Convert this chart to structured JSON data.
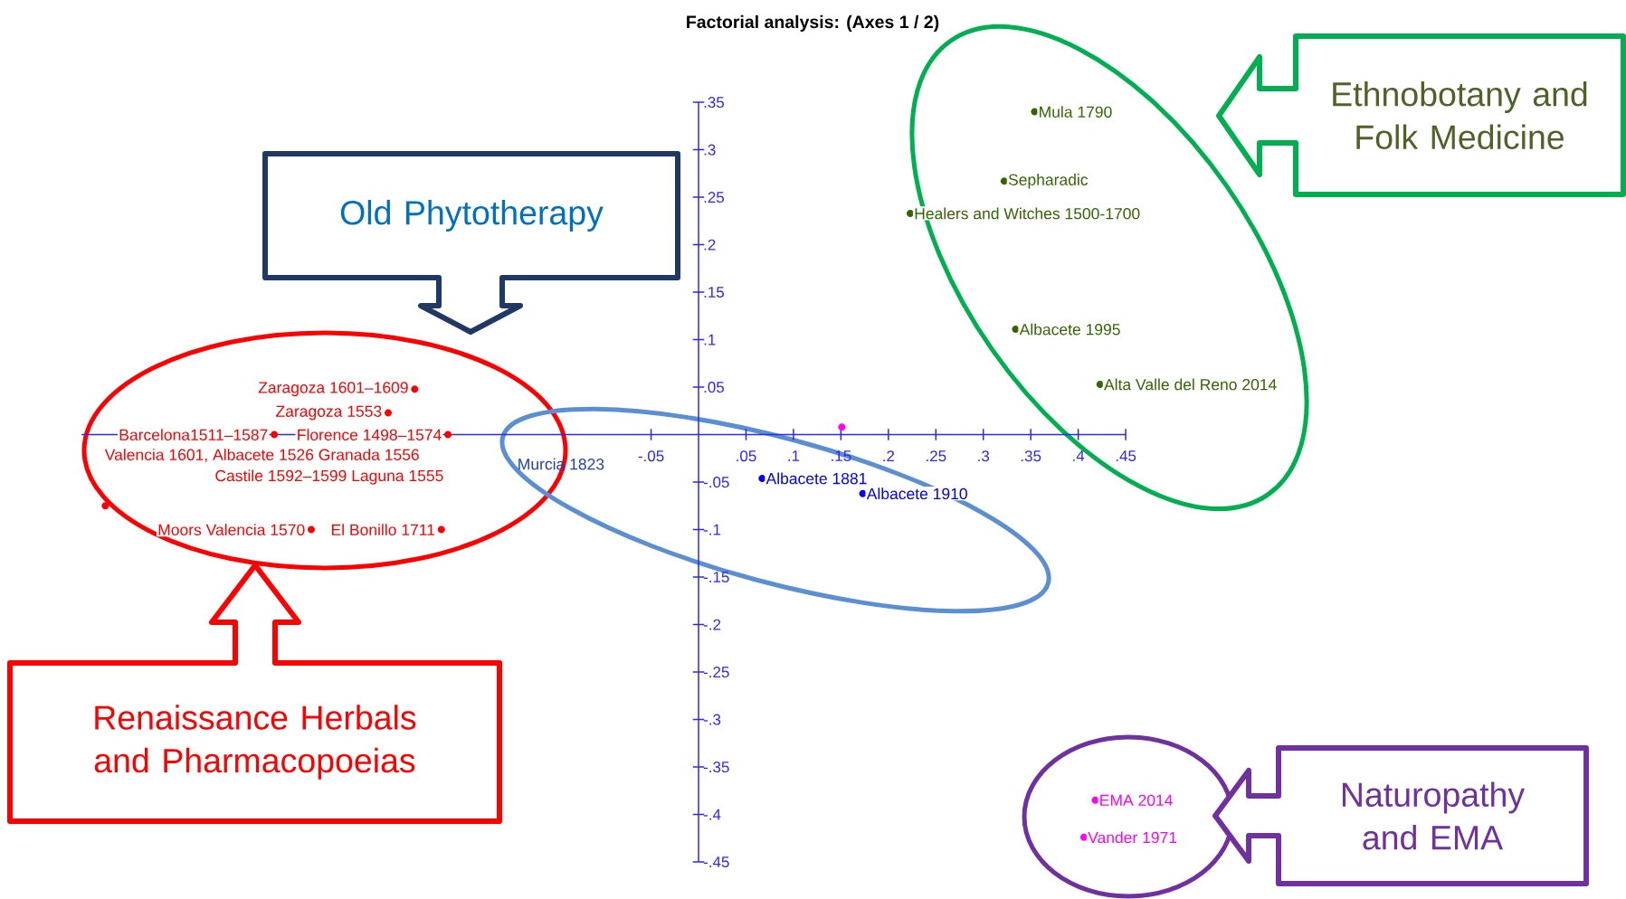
{
  "chart_data": {
    "type": "scatter",
    "title": "Factorial analysis: (Axes 1 / 2)",
    "marker": "circle",
    "xlim": [
      -0.65,
      0.45
    ],
    "ylim": [
      -0.45,
      0.35
    ],
    "xticks": [
      {
        "value": -0.05,
        "label": "-.05"
      },
      {
        "value": 0.05,
        "label": ".05"
      },
      {
        "value": 0.1,
        "label": ".1"
      },
      {
        "value": 0.15,
        "label": ".15"
      },
      {
        "value": 0.2,
        "label": ".2"
      },
      {
        "value": 0.25,
        "label": ".25"
      },
      {
        "value": 0.3,
        "label": ".3"
      },
      {
        "value": 0.35,
        "label": ".35"
      },
      {
        "value": 0.4,
        "label": ".4"
      },
      {
        "value": 0.45,
        "label": ".45"
      }
    ],
    "yticks": [
      {
        "value": 0.35,
        "label": ".35"
      },
      {
        "value": 0.3,
        "label": ".3"
      },
      {
        "value": 0.25,
        "label": ".25"
      },
      {
        "value": 0.2,
        "label": ".2"
      },
      {
        "value": 0.15,
        "label": ".15"
      },
      {
        "value": 0.1,
        "label": ".1"
      },
      {
        "value": 0.05,
        "label": ".05"
      },
      {
        "value": -0.05,
        "label": "-.05"
      },
      {
        "value": -0.1,
        "label": "-.1"
      },
      {
        "value": -0.15,
        "label": "-.15"
      },
      {
        "value": -0.2,
        "label": "-.2"
      },
      {
        "value": -0.25,
        "label": "-.25"
      },
      {
        "value": -0.3,
        "label": "-.3"
      },
      {
        "value": -0.35,
        "label": "-.35"
      },
      {
        "value": -0.4,
        "label": "-.4"
      },
      {
        "value": -0.45,
        "label": "-.45"
      }
    ],
    "series": [
      {
        "color": "#336600",
        "x": [
          0.354,
          0.322,
          0.223,
          0.334,
          0.423
        ],
        "values": [
          0.34,
          0.267,
          0.233,
          0.111,
          0.053
        ]
      },
      {
        "color": "#ff00ff",
        "x": [
          0.151,
          0.418,
          0.406
        ],
        "values": [
          0.008,
          -0.385,
          -0.424
        ]
      },
      {
        "color": "#0000ff",
        "x": [
          0.067,
          0.173
        ],
        "values": [
          -0.046,
          -0.062
        ]
      },
      {
        "color": "#ff0000",
        "x": [
          -0.299,
          -0.327,
          -0.447,
          -0.264,
          -0.625,
          -0.408,
          -0.271
        ],
        "values": [
          0.048,
          0.023,
          0.0,
          0.0,
          -0.075,
          -0.1,
          -0.1
        ]
      }
    ],
    "annotations": [
      {
        "text": "Mula 1790",
        "x": 0.354,
        "y": 0.34
      },
      {
        "text": "Sepharadic",
        "x": 0.322,
        "y": 0.267
      },
      {
        "text": "Healers and Witches 1500-1700",
        "x": 0.223,
        "y": 0.233
      },
      {
        "text": "Albacete 1995",
        "x": 0.334,
        "y": 0.111
      },
      {
        "text": "Alta Valle del Reno 2014",
        "x": 0.423,
        "y": 0.053
      },
      {
        "text": "EMA 2014",
        "x": 0.418,
        "y": -0.385
      },
      {
        "text": "Vander 1971",
        "x": 0.406,
        "y": -0.424
      },
      {
        "text": "Albacete 1881",
        "x": 0.067,
        "y": -0.046
      },
      {
        "text": "Albacete 1910",
        "x": 0.173,
        "y": -0.062
      },
      {
        "text": "Zaragoza 1601–1609",
        "x": -0.299,
        "y": 0.048
      },
      {
        "text": "Zaragoza 1553",
        "x": -0.327,
        "y": 0.023
      },
      {
        "text": "Barcelona1511–1587",
        "x": -0.447,
        "y": 0.0
      },
      {
        "text": "Florence 1498–1574",
        "x": -0.264,
        "y": 0.0
      },
      {
        "text": "Moors Valencia 1570",
        "x": -0.408,
        "y": -0.1
      },
      {
        "text": "El Bonillo 1711",
        "x": -0.271,
        "y": -0.1
      },
      "Murcia 1823",
      "Valencia 1601, Albacete 1526 Granada 1556",
      "Castile 1592–1599   Laguna 1555",
      "Old Phytotherapy",
      "Ethnobotany and Folk Medicine",
      "Renaissance Herbals and Pharmacopoeias",
      "Naturopathy and EMA"
    ]
  }
}
